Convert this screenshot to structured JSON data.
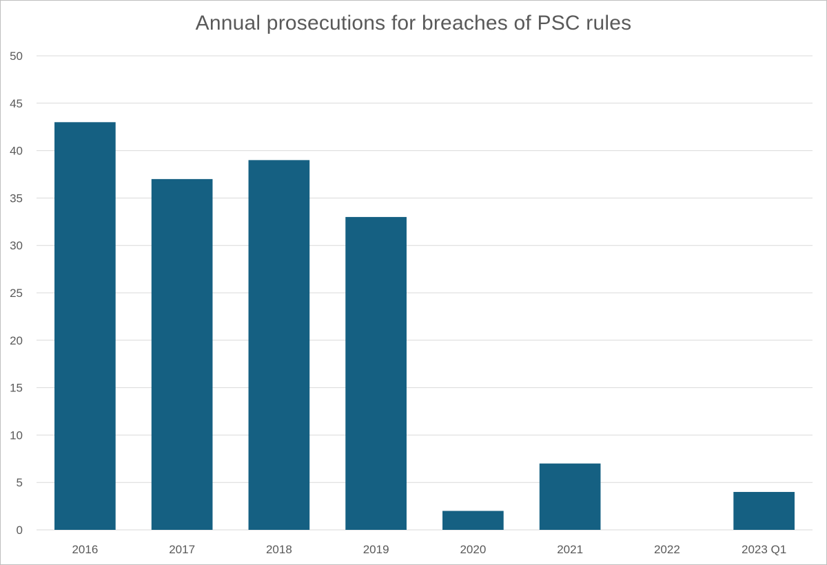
{
  "chart_data": {
    "type": "bar",
    "title": "Annual prosecutions for breaches of PSC rules",
    "xlabel": "",
    "ylabel": "",
    "categories": [
      "2016",
      "2017",
      "2018",
      "2019",
      "2020",
      "2021",
      "2022",
      "2023 Q1"
    ],
    "series": [
      {
        "name": "Prosecutions",
        "values": [
          43,
          37,
          39,
          33,
          2,
          7,
          0,
          4
        ]
      }
    ],
    "ylim": [
      0,
      50
    ],
    "yticks": [
      0,
      5,
      10,
      15,
      20,
      25,
      30,
      35,
      40,
      45,
      50
    ],
    "ytick_labels": [
      "0",
      "5",
      "10",
      "15",
      "20",
      "25",
      "30",
      "35",
      "40",
      "45",
      "50"
    ],
    "grid": true,
    "legend": "none",
    "bar_color": "#156082"
  }
}
